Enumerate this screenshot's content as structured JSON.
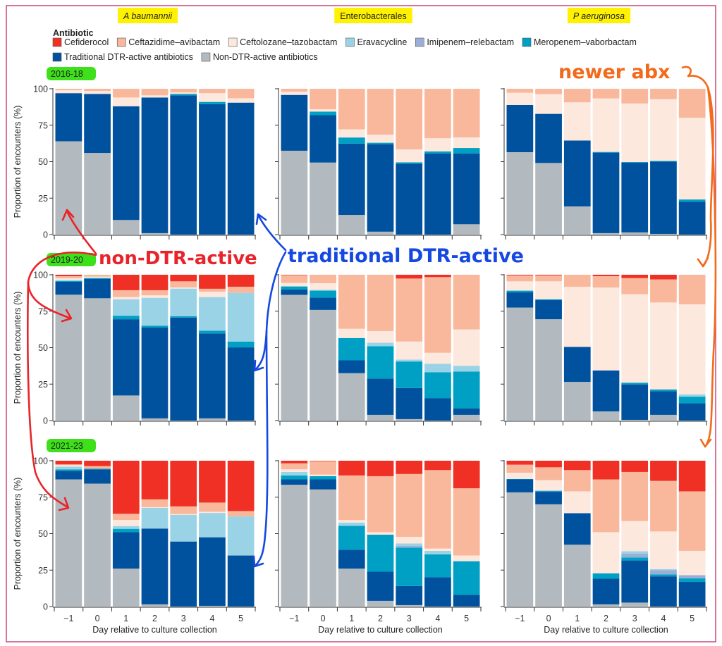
{
  "chart_data": {
    "type": "bar",
    "stacked": true,
    "ylabel": "Proportion of encounters (%)",
    "xlabel": "Day relative to culture collection",
    "ylim": [
      0,
      100
    ],
    "yticks": [
      "0",
      "25",
      "50",
      "75",
      "100"
    ],
    "categories": [
      "−1",
      "0",
      "1",
      "2",
      "3",
      "4",
      "5"
    ],
    "columns": [
      "A baumannii",
      "Enterobacterales",
      "P aeruginosa"
    ],
    "rows": [
      "2016-18",
      "2019-20",
      "2021-23"
    ],
    "legend": {
      "title": "Antibiotic",
      "placement": "top",
      "entries": [
        {
          "key": "cefid",
          "name": "Cefiderocol",
          "color": "#f03024"
        },
        {
          "key": "ceftaz",
          "name": "Ceftazidime–avibactam",
          "color": "#f9b79b"
        },
        {
          "key": "ceftoloz",
          "name": "Ceftolozane–tazobactam",
          "color": "#fde8de"
        },
        {
          "key": "erava",
          "name": "Eravacycline",
          "color": "#9ad3e6"
        },
        {
          "key": "imi",
          "name": "Imipenem–relebactam",
          "color": "#9aaed6"
        },
        {
          "key": "mero",
          "name": "Meropenem–vaborbactam",
          "color": "#00a0c4"
        },
        {
          "key": "trad",
          "name": "Traditional DTR-active antibiotics",
          "color": "#00529e"
        },
        {
          "key": "non",
          "name": "Non-DTR-active antibiotics",
          "color": "#b3babf"
        }
      ]
    },
    "stack_order": [
      "non",
      "trad",
      "mero",
      "imi",
      "erava",
      "ceftoloz",
      "ceftaz",
      "cefid"
    ],
    "panels": [
      {
        "organism": "A baumannii",
        "period": "2016-18",
        "values": {
          "non": [
            64,
            56,
            10,
            1,
            0,
            0,
            0
          ],
          "trad": [
            33,
            40.5,
            78,
            93,
            95.5,
            89.5,
            90.5
          ],
          "mero": [
            0,
            0,
            0,
            0,
            1,
            1.5,
            0
          ],
          "imi": [
            0,
            0,
            0,
            0,
            0,
            0,
            0
          ],
          "erava": [
            0,
            0,
            0,
            0,
            0,
            0,
            0
          ],
          "ceftoloz": [
            2,
            2,
            6,
            1.5,
            1,
            6,
            3
          ],
          "ceftaz": [
            1,
            1.5,
            6,
            4.5,
            2.5,
            3,
            6.5
          ],
          "cefid": [
            0,
            0,
            0,
            0,
            0,
            0,
            0
          ]
        }
      },
      {
        "organism": "Enterobacterales",
        "period": "2016-18",
        "values": {
          "non": [
            57.5,
            49.4,
            13.5,
            2,
            0,
            0,
            7.1
          ],
          "trad": [
            38.3,
            32.5,
            48.9,
            60,
            48.6,
            55.7,
            48.6
          ],
          "mero": [
            0,
            2.4,
            4.2,
            1,
            1,
            1.3,
            3.7
          ],
          "imi": [
            0,
            0,
            0,
            0,
            0,
            0,
            0
          ],
          "erava": [
            0,
            0,
            0,
            0,
            0,
            0,
            0
          ],
          "ceftoloz": [
            2.2,
            1.6,
            5.6,
            5.5,
            8.8,
            9.1,
            7.2
          ],
          "ceftaz": [
            2,
            14.1,
            27.8,
            31.5,
            41.6,
            33.9,
            33.4
          ],
          "cefid": [
            0,
            0,
            0,
            0,
            0,
            0,
            0
          ]
        }
      },
      {
        "organism": "P aeruginosa",
        "period": "2016-18",
        "values": {
          "non": [
            56.5,
            49.1,
            19.3,
            1,
            1.5,
            0.5,
            0
          ],
          "trad": [
            32.4,
            33.7,
            45.2,
            55.2,
            47.8,
            49.5,
            22.5
          ],
          "mero": [
            0,
            0,
            0,
            0.5,
            0.5,
            0.5,
            1.6
          ],
          "imi": [
            0,
            0,
            0,
            0,
            0,
            0,
            0
          ],
          "erava": [
            0,
            0,
            0,
            0,
            0,
            0,
            0
          ],
          "ceftoloz": [
            8.4,
            13.5,
            26.2,
            36.7,
            40.1,
            42.4,
            56
          ],
          "ceftaz": [
            2.7,
            3.7,
            9.3,
            6.6,
            10.1,
            7.1,
            19.9
          ],
          "cefid": [
            0,
            0,
            0,
            0,
            0,
            0,
            0
          ]
        }
      },
      {
        "organism": "A baumannii",
        "period": "2019-20",
        "values": {
          "non": [
            86.3,
            83.9,
            17.2,
            1.5,
            0,
            1.5,
            0
          ],
          "trad": [
            8.9,
            13.2,
            52.3,
            62.3,
            70.6,
            58.3,
            50.2
          ],
          "mero": [
            0.6,
            0.5,
            2.4,
            1.3,
            0.9,
            1.9,
            4
          ],
          "imi": [
            0,
            0,
            0,
            0,
            0,
            0,
            0
          ],
          "erava": [
            0.5,
            0.4,
            11.2,
            19.1,
            19,
            23,
            33.4
          ],
          "ceftoloz": [
            1.3,
            0.7,
            1.6,
            1.7,
            0.8,
            3.7,
            0
          ],
          "ceftaz": [
            1.4,
            1.3,
            4.7,
            3.5,
            4.2,
            2,
            4.2
          ],
          "cefid": [
            1,
            0,
            10.6,
            10.6,
            4.5,
            9.6,
            8.2
          ]
        }
      },
      {
        "organism": "Enterobacterales",
        "period": "2019-20",
        "values": {
          "non": [
            86.2,
            75.9,
            32.5,
            3.9,
            1,
            0,
            3.9
          ],
          "trad": [
            3.7,
            8.5,
            8.8,
            24.9,
            21.3,
            15.4,
            4.5
          ],
          "mero": [
            2.1,
            4.7,
            15.3,
            22.2,
            18.2,
            17.7,
            25.2
          ],
          "imi": [
            0,
            0,
            0,
            0,
            0,
            0,
            0
          ],
          "erava": [
            0,
            0.5,
            0,
            2.4,
            1.3,
            5.8,
            4
          ],
          "ceftoloz": [
            2.4,
            4.6,
            6.4,
            8,
            12.4,
            7.6,
            24.9
          ],
          "ceftaz": [
            5.3,
            5.8,
            37,
            38.6,
            43.2,
            51.9,
            37.5
          ],
          "cefid": [
            0.3,
            0,
            0,
            0,
            2.6,
            1.6,
            0
          ]
        }
      },
      {
        "organism": "P aeruginosa",
        "period": "2019-20",
        "values": {
          "non": [
            77.5,
            69.5,
            26.5,
            6.3,
            0.5,
            3.9,
            0
          ],
          "trad": [
            10.4,
            13.1,
            24,
            28.1,
            24.3,
            16.2,
            11.9
          ],
          "mero": [
            1.2,
            0.6,
            0,
            0,
            1.2,
            1.3,
            4.5
          ],
          "imi": [
            0,
            0,
            0,
            0,
            0,
            0,
            0
          ],
          "erava": [
            0,
            0,
            0,
            0,
            0,
            0,
            1.6
          ],
          "ceftoloz": [
            6.4,
            12.3,
            41.3,
            56.8,
            60.7,
            59.6,
            61.7
          ],
          "ceftaz": [
            4,
            4,
            8.2,
            7.8,
            11,
            15.8,
            20.3
          ],
          "cefid": [
            0.5,
            0.5,
            0,
            1,
            2.3,
            3.2,
            0
          ]
        }
      },
      {
        "organism": "A baumannii",
        "period": "2021-23",
        "values": {
          "non": [
            87.2,
            84.3,
            26,
            1.5,
            0,
            0.5,
            0
          ],
          "trad": [
            5.9,
            9.8,
            25,
            52,
            44.6,
            47,
            35
          ],
          "mero": [
            1,
            0.5,
            2.3,
            0,
            0,
            0,
            0
          ],
          "imi": [
            0,
            0,
            0,
            0,
            0,
            0,
            0
          ],
          "erava": [
            1.9,
            0,
            1.9,
            14.2,
            18.3,
            16.7,
            26.8
          ],
          "ceftoloz": [
            1,
            0,
            4.2,
            0.5,
            0.5,
            0.8,
            0
          ],
          "ceftaz": [
            0.5,
            1.7,
            4.2,
            5.3,
            5.3,
            6.3,
            3.7
          ],
          "cefid": [
            2.5,
            3.7,
            36.4,
            26.5,
            31.3,
            28.7,
            34.5
          ]
        }
      },
      {
        "organism": "Enterobacterales",
        "period": "2021-23",
        "values": {
          "non": [
            83.5,
            80.3,
            26,
            3.9,
            1,
            0,
            0
          ],
          "trad": [
            3.7,
            6.9,
            13,
            20,
            13.1,
            20.1,
            8
          ],
          "mero": [
            2.7,
            2.2,
            16.4,
            25.4,
            26.3,
            15.7,
            23.1
          ],
          "imi": [
            0,
            0,
            0,
            0,
            1.3,
            0,
            0
          ],
          "erava": [
            2.4,
            0,
            2.2,
            0,
            1.6,
            2.4,
            0
          ],
          "ceftoloz": [
            1.8,
            1.1,
            1.8,
            1.7,
            4.5,
            1.6,
            3.9
          ],
          "ceftaz": [
            4.1,
            9.2,
            30.5,
            38.4,
            43.1,
            53.8,
            46.1
          ],
          "cefid": [
            1.8,
            0.3,
            10.1,
            10.6,
            9.1,
            6.4,
            18.9
          ]
        }
      },
      {
        "organism": "P aeruginosa",
        "period": "2021-23",
        "values": {
          "non": [
            78.3,
            70.1,
            42.4,
            1.5,
            2.7,
            0,
            0
          ],
          "trad": [
            8.9,
            8.6,
            21.6,
            17.6,
            28.9,
            20.7,
            16.9
          ],
          "mero": [
            0.3,
            0.5,
            0,
            3.7,
            2.1,
            1.3,
            2.4
          ],
          "imi": [
            0,
            0.4,
            0,
            0,
            2.6,
            2.9,
            2.2
          ],
          "erava": [
            0,
            0,
            0,
            0,
            1.6,
            0.8,
            0
          ],
          "ceftoloz": [
            4.3,
            7.1,
            15,
            28.2,
            20.8,
            25.8,
            16.7
          ],
          "ceftaz": [
            5.5,
            8.8,
            14.6,
            36.2,
            33.6,
            34.7,
            40.8
          ],
          "cefid": [
            2.7,
            4.5,
            6.4,
            12.8,
            7.7,
            13.8,
            21
          ]
        }
      }
    ]
  },
  "annotations": {
    "newer": {
      "text": "newer abx",
      "color": "#f26a1b"
    },
    "non_dtr": {
      "text": "non-DTR-active",
      "color": "#e8242a"
    },
    "trad_dtr": {
      "text": "traditional DTR-active",
      "color": "#1548e0"
    },
    "title_highlight": "#fff200",
    "period_highlight": "#3ee01a",
    "frame_color": "#c94a78"
  }
}
